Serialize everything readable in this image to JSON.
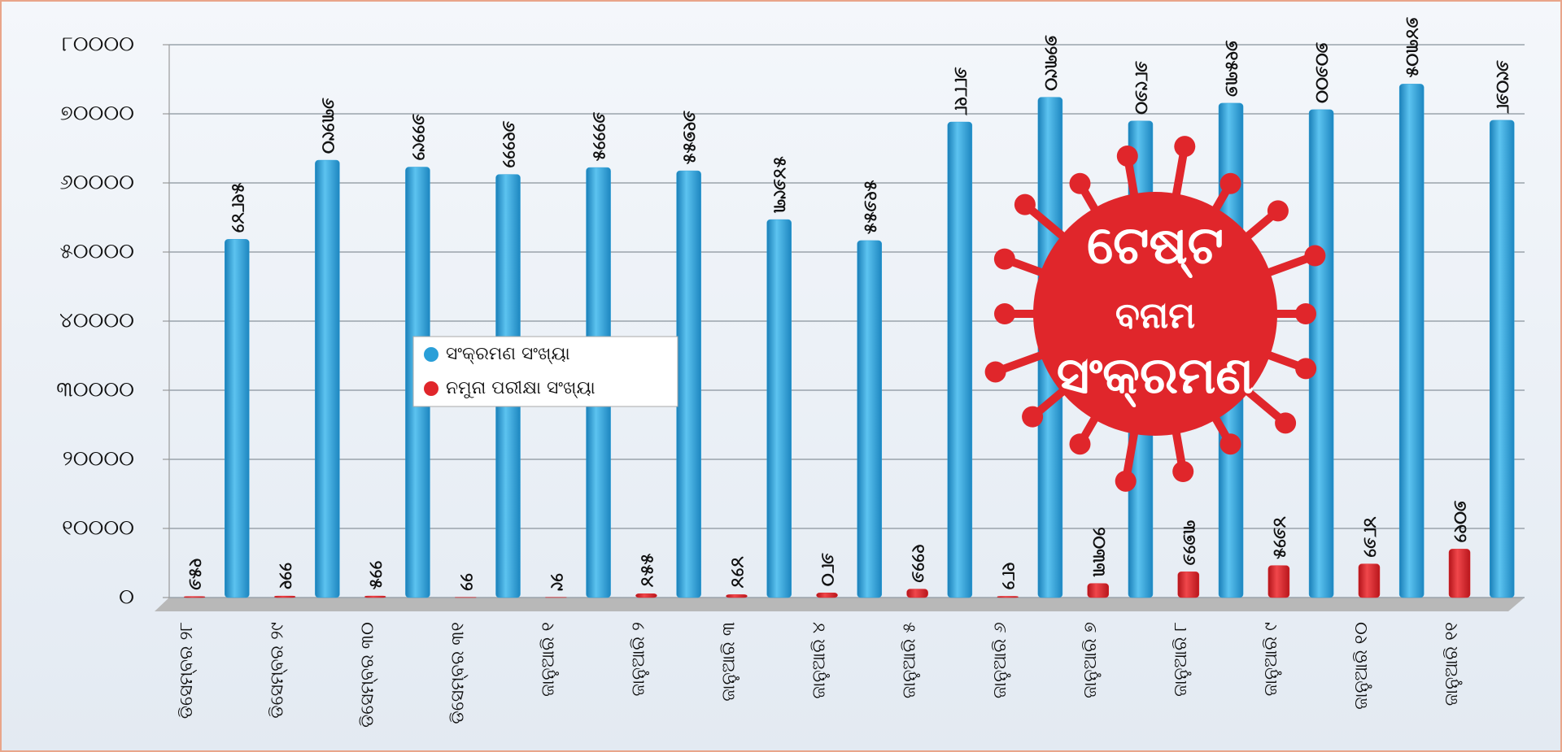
{
  "chart_data": {
    "type": "bar",
    "categories": [
      "ଡିସେମ୍ବର ୨୮",
      "ଡିସେମ୍ବର ୨୯",
      "ଡିସେମ୍ବର ୩୦",
      "ଡିସେମ୍ବର ୩୧",
      "ଜାନୁଆରି ୧",
      "ଜାନୁଆରି ୨",
      "ଜାନୁଆରି ୩",
      "ଜାନୁଆରି ୪",
      "ଜାନୁଆରି ୫",
      "ଜାନୁଆରି ୬",
      "ଜାନୁଆରି ୭",
      "ଜାନୁଆରି ୮",
      "ଜାନୁଆରି ୯",
      "ଜାନୁଆରି ୧୦",
      "ଜାନୁଆରି ୧୧"
    ],
    "series": [
      {
        "name": "ନମୁନା ପରୀକ୍ଷା ସଂଖ୍ୟା",
        "color": "#e0262b",
        "values": [
          156,
          221,
          225,
          22,
          29,
          554,
          424,
          680,
          1226,
          182,
          2033,
          3726,
          4625,
          4862,
          7012
        ],
        "value_labels": [
          "୧୫୬",
          "୨୨୧",
          "୨୨୫",
          "୨୨",
          "୨୯",
          "୫୫୪",
          "୪୨୪",
          "୬୮୦",
          "୧୨୨୬",
          "୧୮୨",
          "୨୦୩୩",
          "୩୭୨୬",
          "୪୬୨୫",
          "୪୮୬୨",
          "୭୦୧୨"
        ]
      },
      {
        "name": "ସଂକ୍ରମଣ ସଂଖ୍ୟା",
        "color": "#2a9fd8",
        "values": [
          51842,
          63290,
          62292,
          61222,
          62225,
          61755,
          54693,
          51655,
          68818,
          72390,
          68960,
          71537,
          70600,
          74305,
          69068
        ],
        "value_labels": [
          "୫୧୮୪୨",
          "୬୩୨୯୦",
          "୬୨୨୯୨",
          "୬୧୨୨୨",
          "୬୨୨୨୫",
          "୬୧୭୫୫",
          "୫୪୬୯୩",
          "୫୧୬୫୫",
          "୬୮୮୧୮",
          "୭୨୩୯୦",
          "୬୮୯୬୦",
          "୭୧୫୩୭",
          "୭୦୬୦୦",
          "୭୪୩୦୫",
          "୬୯୦୬୮"
        ]
      }
    ],
    "ylim": [
      0,
      80000
    ],
    "yticks": [
      {
        "value": 0,
        "label": "୦"
      },
      {
        "value": 10000,
        "label": "୧୦୦୦୦"
      },
      {
        "value": 20000,
        "label": "୨୦୦୦୦"
      },
      {
        "value": 30000,
        "label": "୩୦୦୦୦"
      },
      {
        "value": 40000,
        "label": "୪୦୦୦୦"
      },
      {
        "value": 50000,
        "label": "୫୦୦୦୦"
      },
      {
        "value": 60000,
        "label": "୬୦୦୦୦"
      },
      {
        "value": 70000,
        "label": "୭୦୦୦୦"
      },
      {
        "value": 80000,
        "label": "୮୦୦୦୦"
      }
    ],
    "grid": true,
    "legend_order": [
      1,
      0
    ],
    "annotations": [
      "ଟେଷ୍ଟ",
      "ବନାମ",
      "ସଂକ୍ରମଣ"
    ]
  }
}
